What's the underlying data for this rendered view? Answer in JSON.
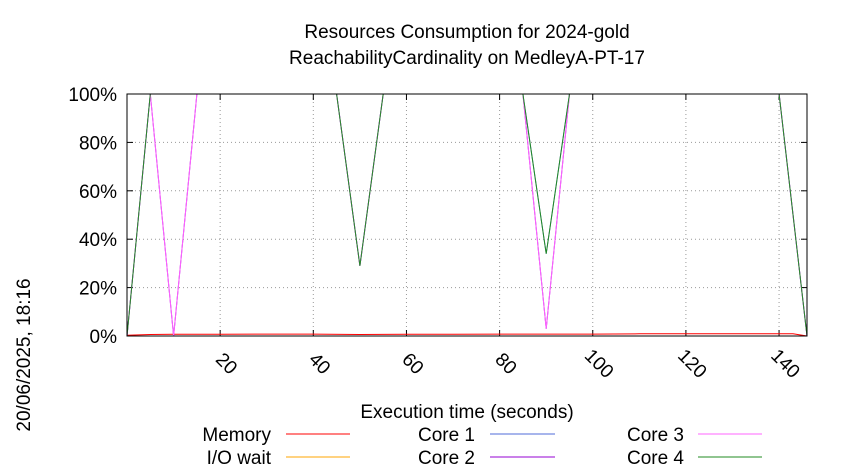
{
  "chart_data": {
    "type": "line",
    "title_line1": "Resources Consumption for 2024-gold",
    "title_line2": "ReachabilityCardinality on MedleyA-PT-17",
    "xlabel": "Execution time (seconds)",
    "ylabel": "",
    "timestamp": "20/06/2025, 18:16",
    "xlim": [
      0,
      146
    ],
    "ylim": [
      0,
      100
    ],
    "x_ticks": [
      20,
      40,
      60,
      80,
      100,
      120,
      140
    ],
    "y_ticks": [
      0,
      20,
      40,
      60,
      80,
      100
    ],
    "y_tick_format": "%",
    "grid": true,
    "legend_position": "bottom",
    "series": [
      {
        "name": "Memory",
        "color": "#ff0000",
        "x": [
          0,
          5,
          10,
          20,
          30,
          40,
          50,
          60,
          70,
          80,
          90,
          100,
          110,
          120,
          130,
          140,
          143,
          146
        ],
        "y": [
          0.3,
          0.6,
          0.7,
          0.7,
          0.8,
          0.8,
          0.6,
          0.7,
          0.7,
          0.8,
          0.8,
          0.8,
          0.9,
          0.9,
          0.9,
          0.9,
          0.9,
          0
        ]
      },
      {
        "name": "I/O wait",
        "color": "#ffa500",
        "x": [
          0,
          146
        ],
        "y": [
          0,
          0
        ]
      },
      {
        "name": "Core 1",
        "color": "#4f6bd9",
        "x": [
          0,
          5,
          10,
          15,
          45,
          50,
          55,
          85,
          90,
          95,
          140,
          146
        ],
        "y": [
          0,
          100,
          100,
          100,
          100,
          29,
          100,
          100,
          34,
          100,
          100,
          0
        ]
      },
      {
        "name": "Core 2",
        "color": "#9400d3",
        "x": [
          0,
          5,
          10,
          15,
          45,
          50,
          55,
          85,
          90,
          95,
          140,
          146
        ],
        "y": [
          0,
          100,
          0,
          100,
          100,
          29,
          100,
          100,
          3,
          100,
          100,
          0
        ]
      },
      {
        "name": "Core 3",
        "color": "#ff66ff",
        "x": [
          0,
          5,
          10,
          15,
          45,
          50,
          55,
          85,
          90,
          95,
          140,
          146
        ],
        "y": [
          0,
          100,
          0,
          100,
          100,
          29,
          100,
          100,
          3,
          100,
          100,
          0
        ]
      },
      {
        "name": "Core 4",
        "color": "#228b22",
        "x": [
          0,
          5,
          10,
          15,
          45,
          50,
          55,
          85,
          90,
          95,
          140,
          146
        ],
        "y": [
          0,
          100,
          100,
          100,
          100,
          29,
          100,
          100,
          34,
          100,
          100,
          0
        ]
      }
    ]
  }
}
